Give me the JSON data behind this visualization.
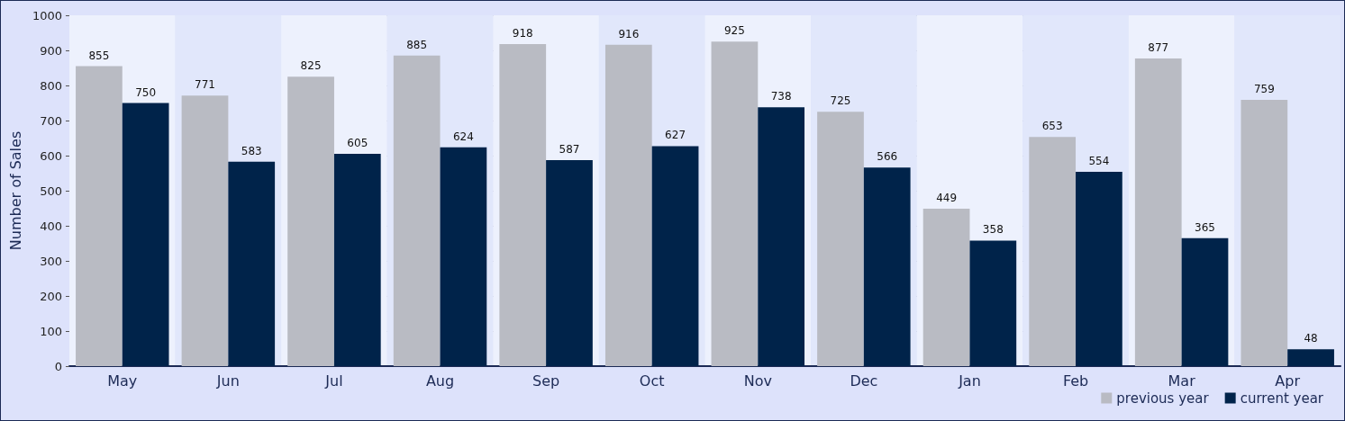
{
  "chart_data": {
    "type": "bar",
    "ylabel": "Number of Sales",
    "categories": [
      "May",
      "Jun",
      "Jul",
      "Aug",
      "Sep",
      "Oct",
      "Nov",
      "Dec",
      "Jan",
      "Feb",
      "Mar",
      "Apr"
    ],
    "series": [
      {
        "name": "previous year",
        "color": "#b9bbc3",
        "values": [
          855,
          771,
          825,
          885,
          918,
          916,
          925,
          725,
          449,
          653,
          877,
          759
        ]
      },
      {
        "name": "current year",
        "color": "#00234a",
        "values": [
          750,
          583,
          605,
          624,
          587,
          627,
          738,
          566,
          358,
          554,
          365,
          48
        ]
      }
    ],
    "ylim": [
      0,
      1000
    ],
    "yticks": [
      0,
      100,
      200,
      300,
      400,
      500,
      600,
      700,
      800,
      900,
      1000
    ],
    "grid": "y",
    "legend": "bottom right",
    "data_labels": true
  }
}
